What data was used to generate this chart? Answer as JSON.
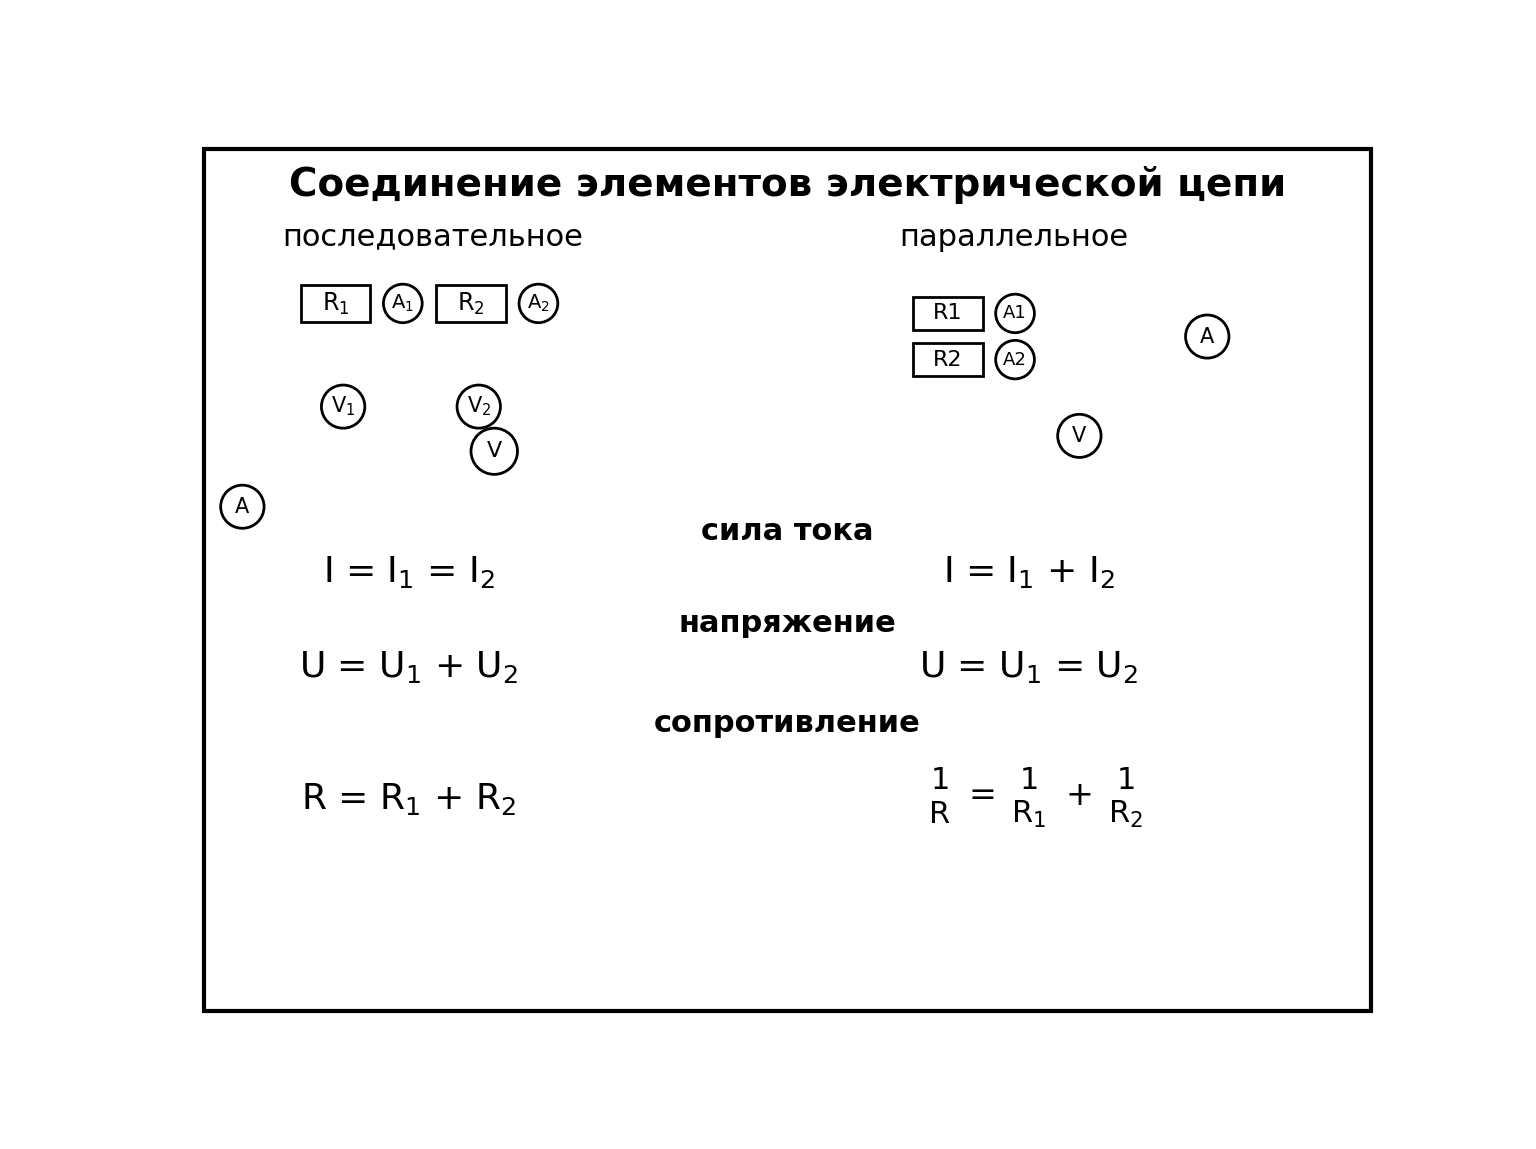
{
  "title": "Соединение элементов электрической цепи",
  "left_label": "последовательное",
  "right_label": "параллельное",
  "bg_color": "#ffffff",
  "border_color": "#000000"
}
